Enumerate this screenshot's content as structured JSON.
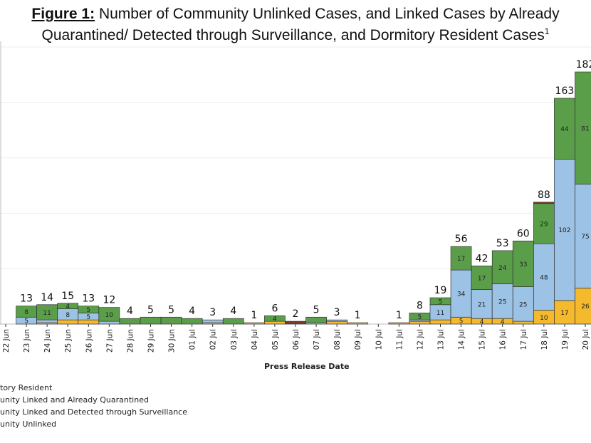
{
  "chart_data": {
    "type": "bar",
    "stacked": true,
    "title_prefix": "Figure 1:",
    "title": "Number of Community Unlinked Cases, and Linked Cases by Already Quarantined/ Detected through Surveillance, and Dormitory Resident Cases",
    "title_footnote": "1",
    "xlabel": "Press Release Date",
    "ylabel": "",
    "ylim": [
      0,
      200
    ],
    "grid": true,
    "legend_position": "bottom-left",
    "categories": [
      "22 Jun",
      "23 Jun",
      "24 Jun",
      "25 Jun",
      "26 Jun",
      "27 Jun",
      "28 Jun",
      "29 Jun",
      "30 Jun",
      "01 Jul",
      "02 Jul",
      "03 Jul",
      "04 Jul",
      "05 Jul",
      "06 Jul",
      "07 Jul",
      "08 Jul",
      "09 Jul",
      "10 Jul",
      "11 Jul",
      "12 Jul",
      "13 Jul",
      "14 Jul",
      "15 Jul",
      "16 Jul",
      "17 Jul",
      "18 Jul",
      "19 Jul",
      "20 Jul"
    ],
    "totals": [
      null,
      13,
      14,
      15,
      13,
      12,
      4,
      5,
      5,
      4,
      3,
      4,
      1,
      6,
      2,
      5,
      3,
      1,
      null,
      1,
      8,
      19,
      56,
      42,
      53,
      60,
      88,
      163,
      182
    ],
    "series": [
      {
        "name": "unity Unlinked",
        "color": "#f4b92c",
        "values": [
          0,
          0,
          1,
          3,
          3,
          0,
          0,
          0,
          0,
          0,
          1,
          0,
          1,
          2,
          0,
          0,
          2,
          1,
          0,
          1,
          2,
          3,
          5,
          4,
          4,
          2,
          10,
          17,
          26
        ],
        "labels": [
          null,
          null,
          null,
          null,
          null,
          null,
          null,
          null,
          null,
          null,
          null,
          null,
          null,
          null,
          null,
          null,
          null,
          null,
          null,
          null,
          null,
          null,
          "5",
          "4",
          "4",
          null,
          "10",
          "17",
          "26"
        ]
      },
      {
        "name": "unity Linked and Detected through Surveillance",
        "color": "#9cc2e5",
        "values": [
          0,
          5,
          2,
          8,
          5,
          2,
          0,
          0,
          0,
          0,
          2,
          0,
          0,
          0,
          0,
          1,
          1,
          0,
          0,
          0,
          1,
          11,
          34,
          21,
          25,
          25,
          48,
          102,
          75
        ],
        "labels": [
          null,
          "5",
          null,
          "8",
          "5",
          null,
          null,
          null,
          null,
          null,
          null,
          null,
          null,
          null,
          null,
          null,
          null,
          null,
          null,
          null,
          null,
          "11",
          "34",
          "21",
          "25",
          "25",
          "48",
          "102",
          "75"
        ]
      },
      {
        "name": "unity Linked and Already Quarantined",
        "color": "#5b9e4a",
        "values": [
          0,
          8,
          11,
          4,
          5,
          10,
          4,
          5,
          5,
          4,
          0,
          4,
          0,
          4,
          0,
          4,
          0,
          0,
          0,
          0,
          5,
          5,
          17,
          17,
          24,
          33,
          29,
          44,
          81
        ],
        "labels": [
          null,
          "8",
          "11",
          "4",
          "5",
          "10",
          null,
          null,
          null,
          null,
          null,
          null,
          null,
          "4",
          null,
          null,
          null,
          null,
          null,
          null,
          "5",
          "5",
          "17",
          "17",
          "24",
          "33",
          "29",
          "44",
          "81"
        ]
      },
      {
        "name": "tory Resident",
        "color": "#7a3b2b",
        "values": [
          0,
          0,
          0,
          0,
          0,
          0,
          0,
          0,
          0,
          0,
          0,
          0,
          0,
          0,
          2,
          0,
          0,
          0,
          0,
          0,
          0,
          0,
          0,
          0,
          0,
          0,
          1,
          0,
          0
        ],
        "labels": []
      }
    ]
  }
}
